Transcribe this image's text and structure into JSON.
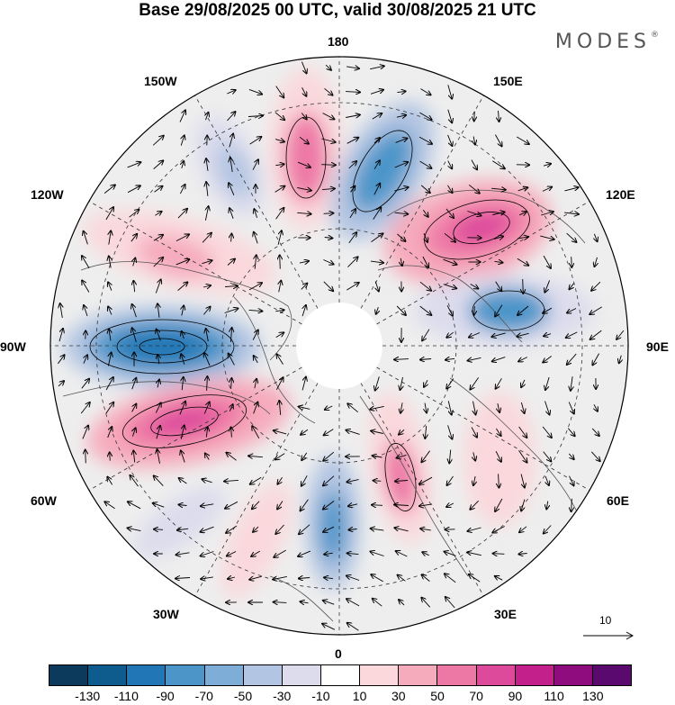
{
  "title": "Base 29/08/2025 00 UTC, valid 30/08/2025 21 UTC",
  "brand": "MODES",
  "brand_mark": "®",
  "longitude_labels": {
    "n180": "180",
    "w150": "150W",
    "e150": "150E",
    "w120": "120W",
    "e120": "120E",
    "w90": "90W",
    "e90": "90E",
    "w60": "60W",
    "e60": "60E",
    "w30": "30W",
    "e30": "30E",
    "s0": "0"
  },
  "reference_vector": {
    "label": "10"
  },
  "colorbar": {
    "colors": [
      "#0b3a5c",
      "#0e5b8e",
      "#2177b5",
      "#4b95c9",
      "#7eadd8",
      "#b2c5e2",
      "#dcdced",
      "#ffffff",
      "#fad8dc",
      "#f6abbc",
      "#ee78a5",
      "#dd4a9c",
      "#c3208b",
      "#8f0c7e",
      "#5a0a6f"
    ],
    "ticks": [
      "-130",
      "-110",
      "-90",
      "-70",
      "-50",
      "-30",
      "-10",
      "10",
      "30",
      "50",
      "70",
      "90",
      "110",
      "130"
    ]
  },
  "map_data": {
    "projection": "north-polar-stereographic",
    "field": "anomaly",
    "centers": [
      {
        "sign": "negative",
        "value": -100,
        "lon": -90,
        "note": "strong low near 90W"
      },
      {
        "sign": "positive",
        "value": 100,
        "lon": -60,
        "note": "strong high near 70W"
      },
      {
        "sign": "positive",
        "value": 90,
        "lon": 120,
        "note": "high near 120E"
      },
      {
        "sign": "negative",
        "value": -70,
        "lon": 100,
        "note": "low near 100E"
      },
      {
        "sign": "negative",
        "value": -60,
        "lon": 160,
        "note": "low near 160E"
      },
      {
        "sign": "positive",
        "value": 70,
        "lon": 175,
        "note": "high near 180"
      },
      {
        "sign": "negative",
        "value": -40,
        "lon": -160,
        "note": "weak low near 160W"
      },
      {
        "sign": "positive",
        "value": 50,
        "lon": -120,
        "note": "high near 120W"
      },
      {
        "sign": "positive",
        "value": 60,
        "lon": 20,
        "note": "high near 20E"
      },
      {
        "sign": "negative",
        "value": -50,
        "lon": -5,
        "note": "low near 0"
      },
      {
        "sign": "positive",
        "value": 30,
        "lon": -30,
        "note": "weak high near 30W"
      }
    ]
  }
}
